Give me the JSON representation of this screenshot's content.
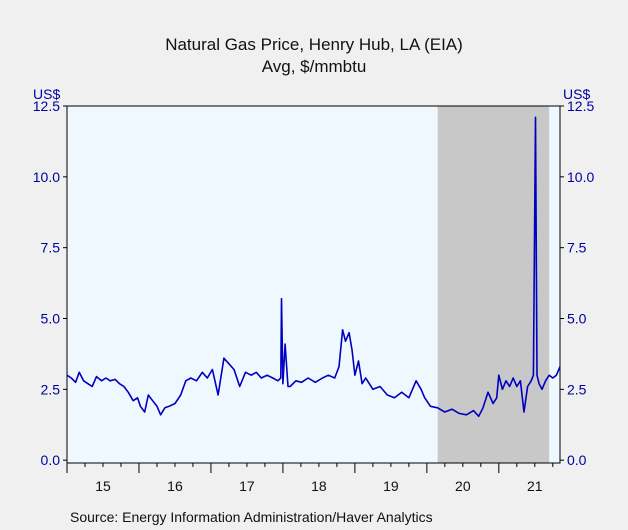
{
  "chart_data": {
    "type": "line",
    "title": "Natural Gas Price, Henry Hub, LA (EIA)",
    "subtitle": "Avg, $/mmbtu",
    "ylabel_left": "US$",
    "ylabel_right": "US$",
    "source": "Source:  Energy Information Administration/Haver Analytics",
    "ylim": [
      -0.1,
      12.5
    ],
    "yticks": [
      "0.0",
      "2.5",
      "5.0",
      "7.5",
      "10.0",
      "12.5"
    ],
    "ytick_values": [
      0,
      2.5,
      5,
      7.5,
      10,
      12.5
    ],
    "xlim": [
      2015.0,
      2021.85
    ],
    "xticks": [
      "15",
      "16",
      "17",
      "18",
      "19",
      "20",
      "21"
    ],
    "xtick_positions": [
      2015.5,
      2016.5,
      2017.5,
      2018.5,
      2019.5,
      2020.5,
      2021.5
    ],
    "recession_shade": [
      2020.15,
      2021.7
    ],
    "grid": false,
    "series": [
      {
        "color": "#0000c0",
        "x": [
          2015.0,
          2015.06,
          2015.12,
          2015.17,
          2015.23,
          2015.29,
          2015.35,
          2015.41,
          2015.48,
          2015.54,
          2015.6,
          2015.67,
          2015.73,
          2015.79,
          2015.85,
          2015.92,
          2015.98,
          2016.02,
          2016.08,
          2016.13,
          2016.19,
          2016.25,
          2016.3,
          2016.36,
          2016.42,
          2016.5,
          2016.58,
          2016.65,
          2016.72,
          2016.8,
          2016.88,
          2016.95,
          2017.02,
          2017.1,
          2017.18,
          2017.25,
          2017.32,
          2017.4,
          2017.48,
          2017.56,
          2017.63,
          2017.7,
          2017.78,
          2017.86,
          2017.93,
          2017.97,
          2017.98,
          2018.0,
          2018.03,
          2018.07,
          2018.1,
          2018.18,
          2018.26,
          2018.35,
          2018.45,
          2018.55,
          2018.63,
          2018.72,
          2018.78,
          2018.83,
          2018.87,
          2018.92,
          2018.96,
          2019.0,
          2019.05,
          2019.1,
          2019.15,
          2019.25,
          2019.35,
          2019.45,
          2019.55,
          2019.65,
          2019.75,
          2019.85,
          2019.92,
          2019.97,
          2020.05,
          2020.15,
          2020.25,
          2020.35,
          2020.45,
          2020.55,
          2020.65,
          2020.72,
          2020.78,
          2020.85,
          2020.92,
          2020.97,
          2021.0,
          2021.05,
          2021.1,
          2021.15,
          2021.2,
          2021.25,
          2021.3,
          2021.35,
          2021.4,
          2021.45,
          2021.48,
          2021.51,
          2021.53,
          2021.56,
          2021.6,
          2021.65,
          2021.7,
          2021.75,
          2021.8,
          2021.85
        ],
        "y": [
          3.0,
          2.9,
          2.75,
          3.1,
          2.8,
          2.7,
          2.6,
          2.95,
          2.8,
          2.9,
          2.8,
          2.85,
          2.7,
          2.6,
          2.4,
          2.1,
          2.2,
          1.9,
          1.7,
          2.3,
          2.1,
          1.9,
          1.6,
          1.85,
          1.9,
          2.0,
          2.3,
          2.8,
          2.9,
          2.8,
          3.1,
          2.9,
          3.2,
          2.3,
          3.6,
          3.4,
          3.2,
          2.6,
          3.1,
          3.0,
          3.1,
          2.9,
          3.0,
          2.9,
          2.8,
          2.9,
          5.7,
          2.7,
          4.1,
          2.6,
          2.6,
          2.8,
          2.75,
          2.9,
          2.75,
          2.9,
          3.0,
          2.9,
          3.3,
          4.6,
          4.2,
          4.5,
          3.9,
          3.0,
          3.5,
          2.7,
          2.9,
          2.5,
          2.6,
          2.3,
          2.2,
          2.4,
          2.2,
          2.8,
          2.5,
          2.2,
          1.9,
          1.85,
          1.7,
          1.8,
          1.65,
          1.6,
          1.75,
          1.55,
          1.85,
          2.4,
          2.0,
          2.2,
          3.0,
          2.5,
          2.8,
          2.6,
          2.9,
          2.6,
          2.8,
          1.7,
          2.6,
          2.8,
          3.0,
          12.1,
          3.0,
          2.7,
          2.5,
          2.8,
          3.0,
          2.9,
          3.0,
          3.3
        ]
      }
    ]
  }
}
